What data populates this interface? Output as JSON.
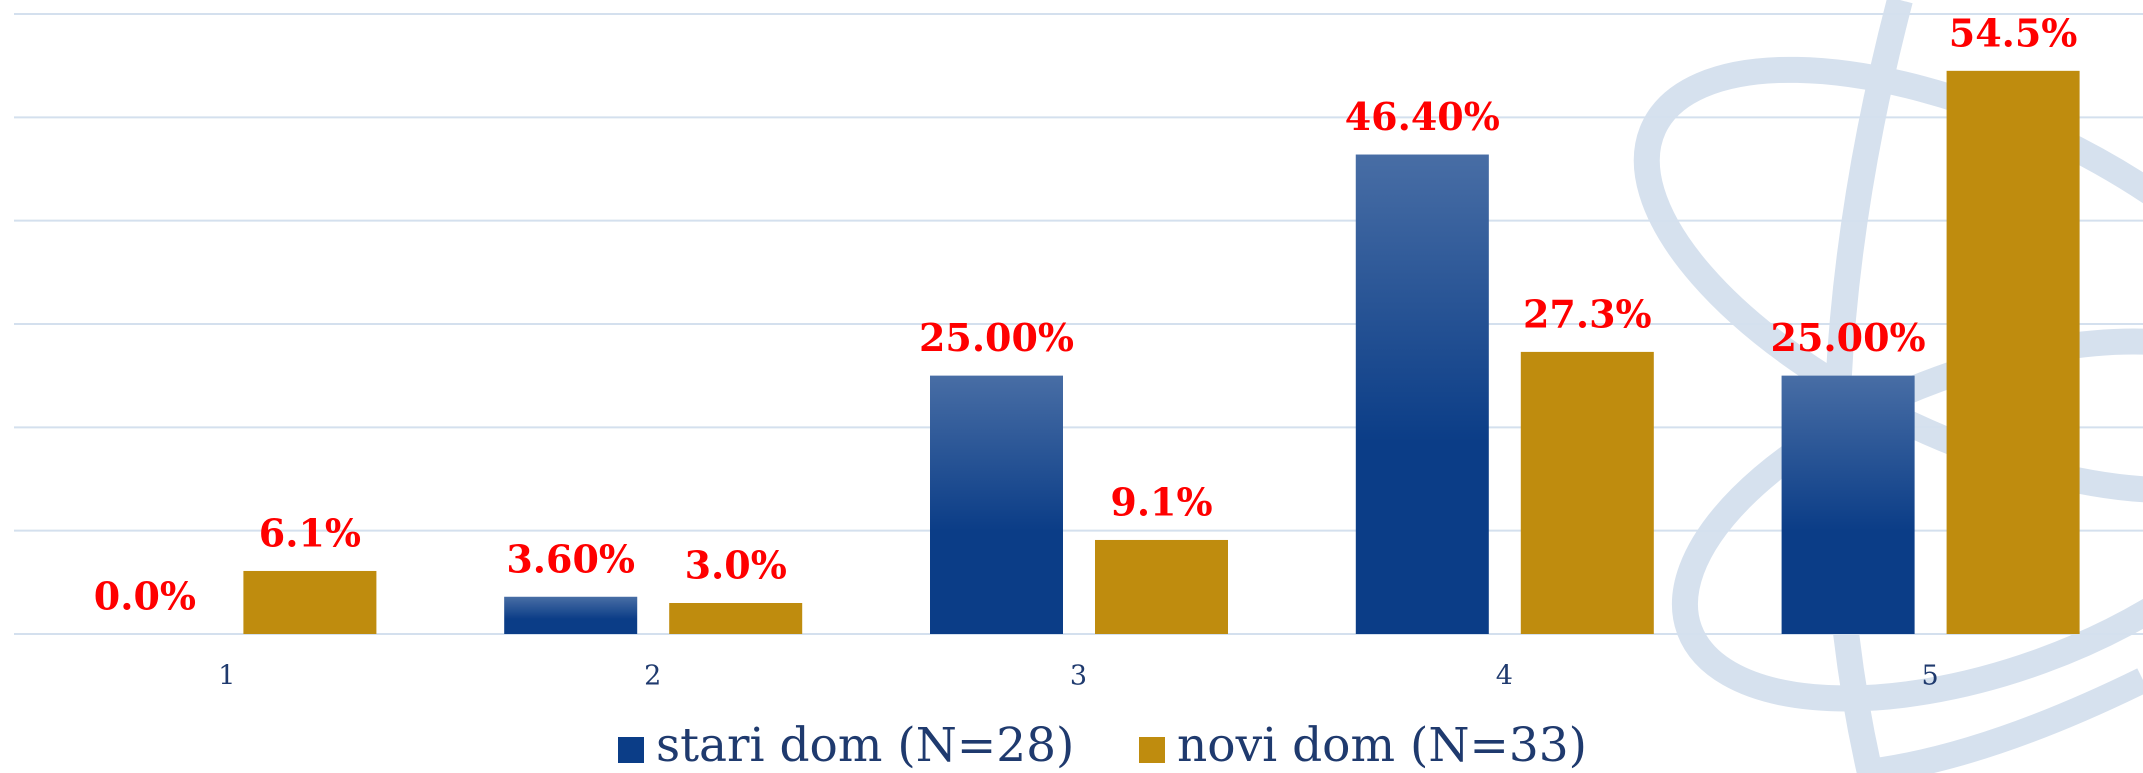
{
  "chart_data": {
    "type": "bar",
    "categories": [
      "1",
      "2",
      "3",
      "4",
      "5"
    ],
    "series": [
      {
        "name": "stari dom (N=28)",
        "color": "#0b3d87",
        "values": [
          0,
          3.6,
          25,
          46.4,
          25
        ],
        "value_labels": [
          "0.0%",
          "3.60%",
          "25.00%",
          "46.40%",
          "25.00%"
        ]
      },
      {
        "name": "novi dom (N=33)",
        "color": "#bf8c0e",
        "values": [
          6.1,
          3.0,
          9.1,
          27.3,
          54.5
        ],
        "value_labels": [
          "6.1%",
          "3.0%",
          "9.1%",
          "27.3%",
          "54.5%"
        ]
      }
    ],
    "ylim": [
      0,
      60
    ],
    "yticks": [
      0,
      10,
      20,
      30,
      40,
      50,
      60
    ],
    "grid": true,
    "legend": "bottom",
    "label_color": "#ff0000"
  }
}
